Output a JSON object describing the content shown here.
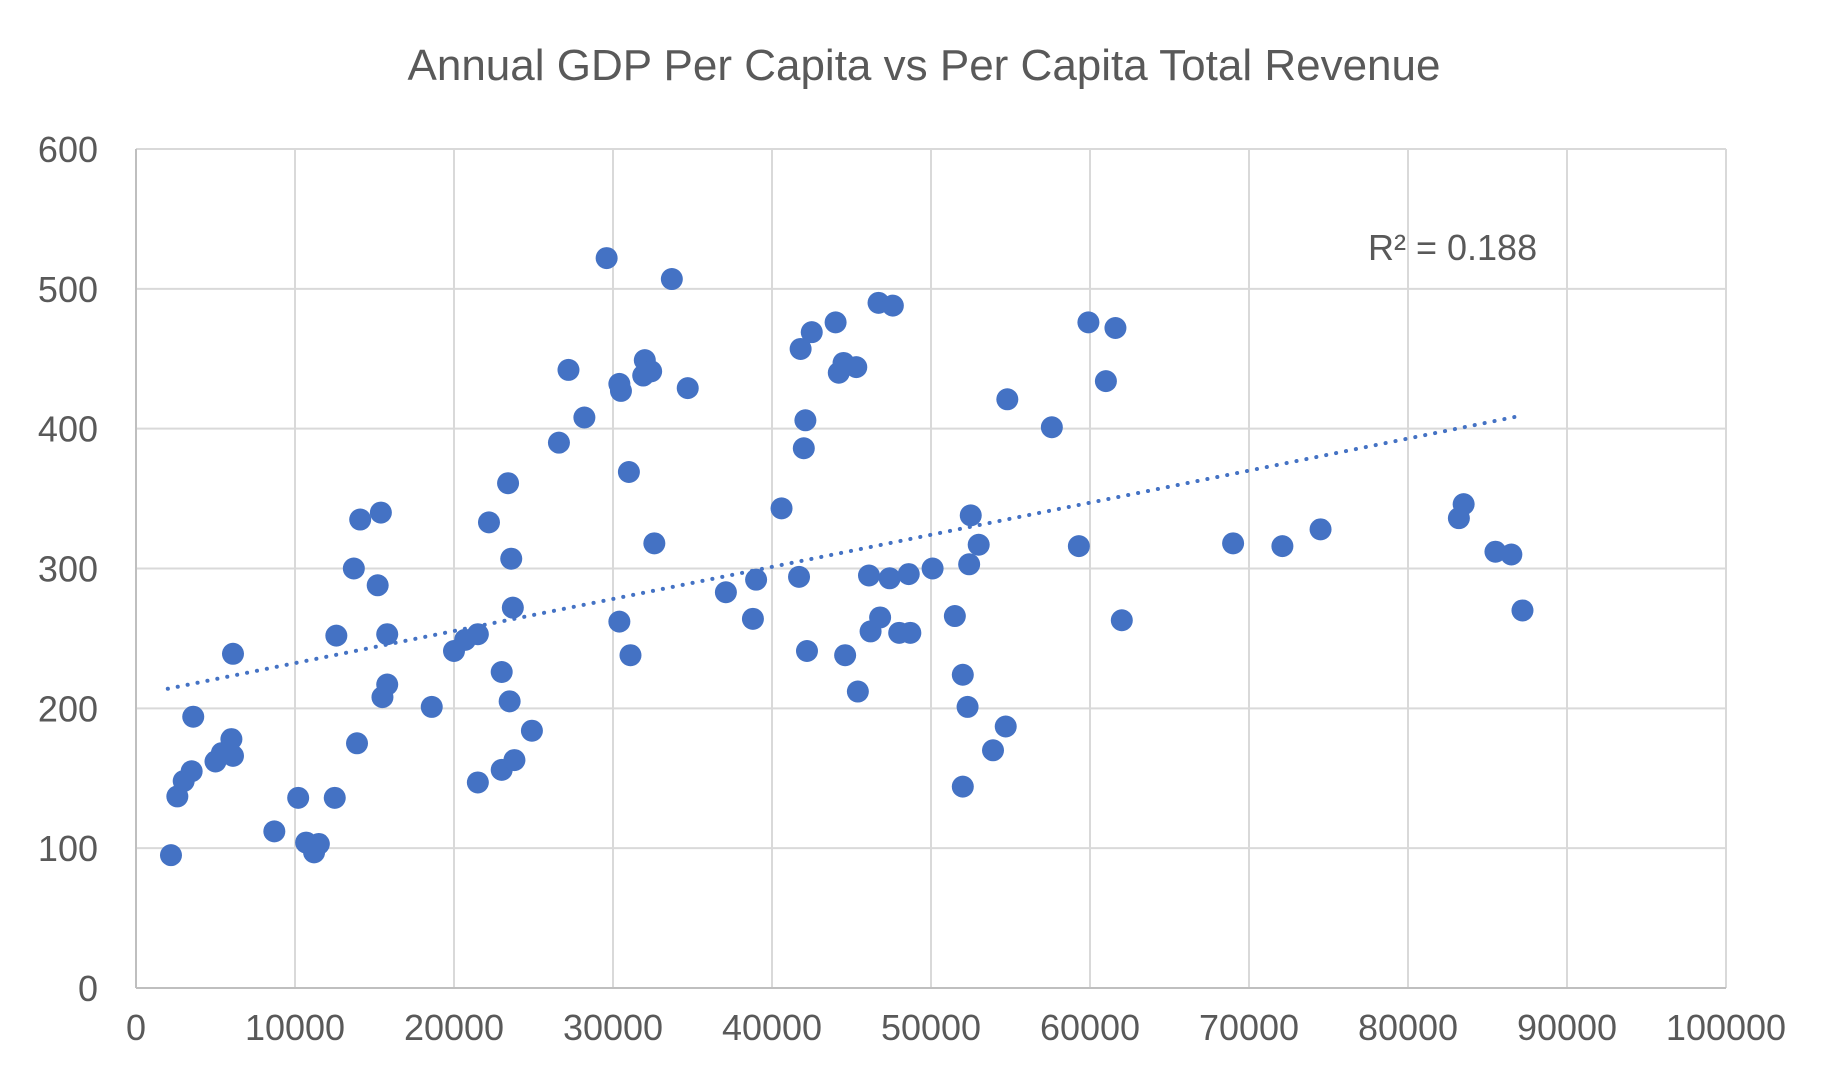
{
  "chart_data": {
    "type": "scatter",
    "title": "Annual GDP Per Capita vs Per Capita Total Revenue",
    "xlabel": "",
    "ylabel": "",
    "xlim": [
      0,
      100000
    ],
    "ylim": [
      0,
      600
    ],
    "x_ticks": [
      0,
      10000,
      20000,
      30000,
      40000,
      50000,
      60000,
      70000,
      80000,
      90000,
      100000
    ],
    "y_ticks": [
      0,
      100,
      200,
      300,
      400,
      500,
      600
    ],
    "grid": true,
    "legend": "none",
    "colors": {
      "marker": "#4472c4",
      "trendline": "#4472c4",
      "grid": "#d9d9d9",
      "text": "#595959"
    },
    "trendline": {
      "type": "linear",
      "style": "dotted",
      "x": [
        2000,
        87000
      ],
      "y": [
        214,
        409
      ]
    },
    "annotation": "R² = 0.188",
    "series": [
      {
        "points": [
          [
            2200,
            95
          ],
          [
            2600,
            137
          ],
          [
            3000,
            148
          ],
          [
            3500,
            155
          ],
          [
            3600,
            194
          ],
          [
            5000,
            162
          ],
          [
            5400,
            168
          ],
          [
            6000,
            178
          ],
          [
            6100,
            166
          ],
          [
            6100,
            239
          ],
          [
            8700,
            112
          ],
          [
            10200,
            136
          ],
          [
            10700,
            104
          ],
          [
            11200,
            97
          ],
          [
            11500,
            103
          ],
          [
            12500,
            136
          ],
          [
            12600,
            252
          ],
          [
            13700,
            300
          ],
          [
            13900,
            175
          ],
          [
            14100,
            335
          ],
          [
            15200,
            288
          ],
          [
            15400,
            340
          ],
          [
            15500,
            208
          ],
          [
            15800,
            217
          ],
          [
            15800,
            253
          ],
          [
            18600,
            201
          ],
          [
            20000,
            241
          ],
          [
            20700,
            249
          ],
          [
            21500,
            253
          ],
          [
            21500,
            147
          ],
          [
            22200,
            333
          ],
          [
            23000,
            226
          ],
          [
            23000,
            156
          ],
          [
            23400,
            361
          ],
          [
            23500,
            205
          ],
          [
            23600,
            307
          ],
          [
            23700,
            272
          ],
          [
            23800,
            163
          ],
          [
            24900,
            184
          ],
          [
            26600,
            390
          ],
          [
            27200,
            442
          ],
          [
            28200,
            408
          ],
          [
            29600,
            522
          ],
          [
            30400,
            262
          ],
          [
            30400,
            432
          ],
          [
            30500,
            427
          ],
          [
            31000,
            369
          ],
          [
            31100,
            238
          ],
          [
            31900,
            438
          ],
          [
            32000,
            449
          ],
          [
            32400,
            441
          ],
          [
            32600,
            318
          ],
          [
            33700,
            507
          ],
          [
            34700,
            429
          ],
          [
            37100,
            283
          ],
          [
            38800,
            264
          ],
          [
            39000,
            292
          ],
          [
            40600,
            343
          ],
          [
            41700,
            294
          ],
          [
            41800,
            457
          ],
          [
            42100,
            406
          ],
          [
            42000,
            386
          ],
          [
            42200,
            241
          ],
          [
            42500,
            469
          ],
          [
            44000,
            476
          ],
          [
            44200,
            440
          ],
          [
            44500,
            447
          ],
          [
            44600,
            238
          ],
          [
            45300,
            444
          ],
          [
            45400,
            212
          ],
          [
            46100,
            295
          ],
          [
            46200,
            255
          ],
          [
            46700,
            490
          ],
          [
            46800,
            265
          ],
          [
            47400,
            293
          ],
          [
            47600,
            488
          ],
          [
            48000,
            254
          ],
          [
            48600,
            296
          ],
          [
            48700,
            254
          ],
          [
            50100,
            300
          ],
          [
            51500,
            266
          ],
          [
            52000,
            224
          ],
          [
            52000,
            144
          ],
          [
            52300,
            201
          ],
          [
            52400,
            303
          ],
          [
            52500,
            338
          ],
          [
            53000,
            317
          ],
          [
            53900,
            170
          ],
          [
            54700,
            187
          ],
          [
            54800,
            421
          ],
          [
            57600,
            401
          ],
          [
            59300,
            316
          ],
          [
            59900,
            476
          ],
          [
            61000,
            434
          ],
          [
            61600,
            472
          ],
          [
            62000,
            263
          ],
          [
            69000,
            318
          ],
          [
            72100,
            316
          ],
          [
            74500,
            328
          ],
          [
            83200,
            336
          ],
          [
            83500,
            346
          ],
          [
            85500,
            312
          ],
          [
            86500,
            310
          ],
          [
            87200,
            270
          ]
        ]
      }
    ]
  }
}
